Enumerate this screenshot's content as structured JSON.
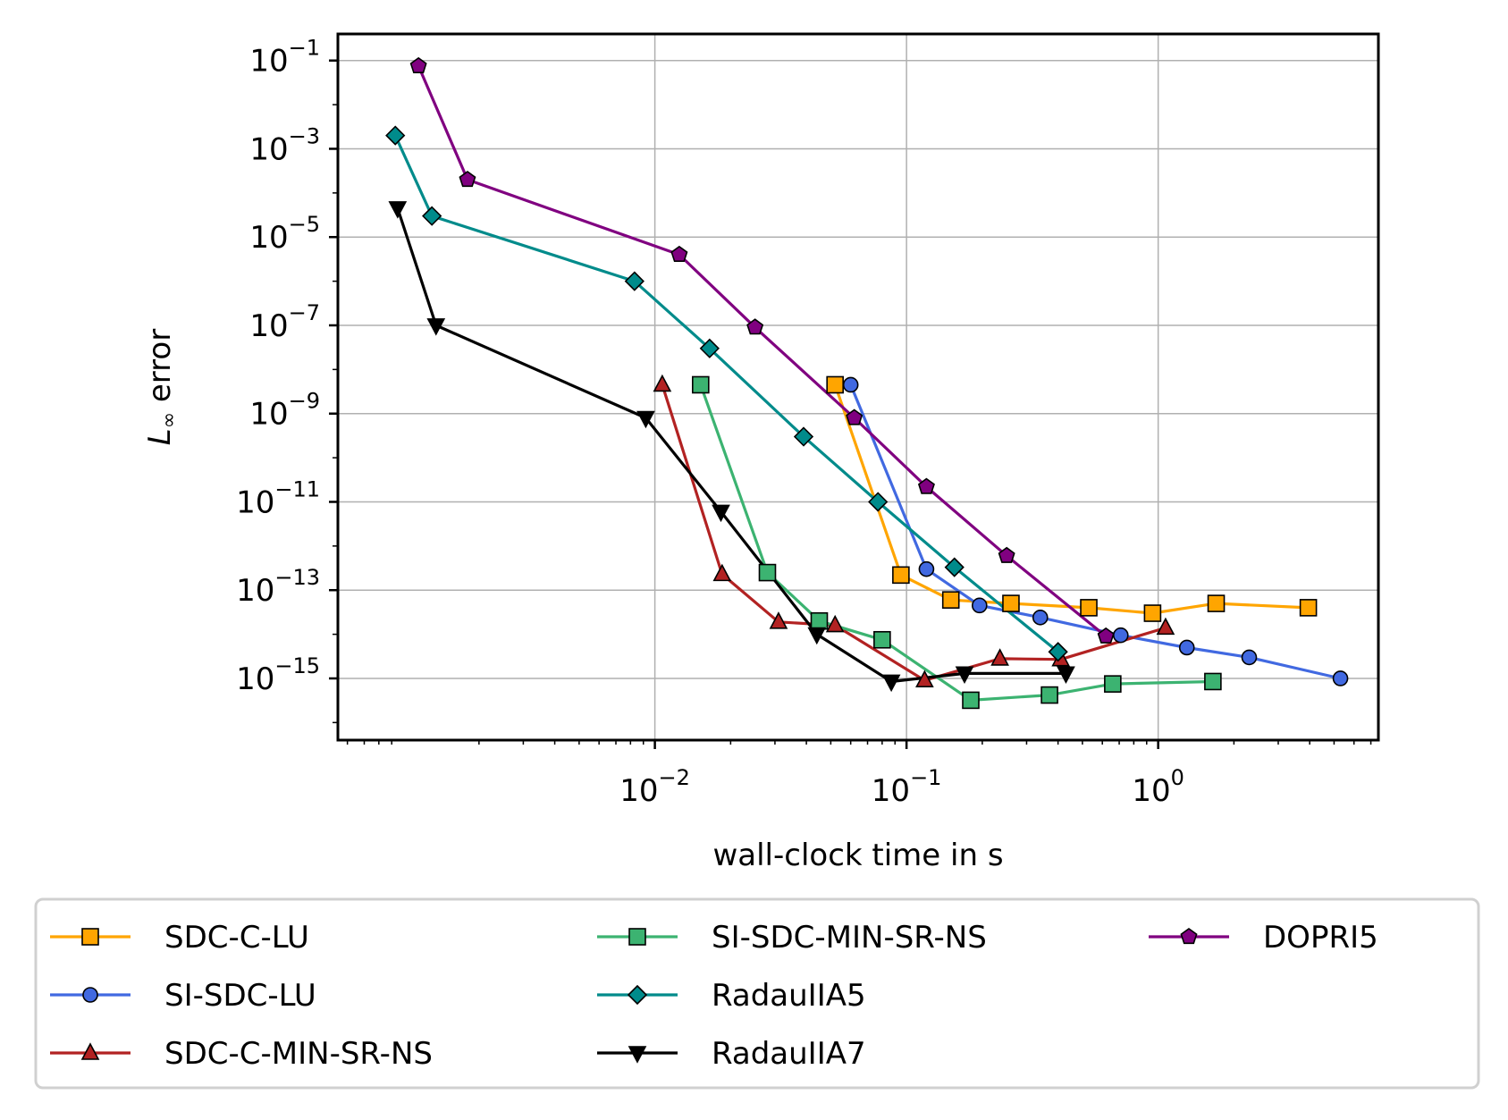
{
  "chart_data": {
    "type": "line",
    "title": "",
    "xlabel": "wall-clock time in s",
    "ylabel_main": "L",
    "ylabel_sub": "∞",
    "ylabel_rest": " error",
    "xscale": "log",
    "yscale": "log",
    "xlim": [
      0.00055,
      7.5
    ],
    "ylim": [
      4e-17,
      0.4
    ],
    "grid": true,
    "x_ticks": [
      {
        "value": 0.01,
        "base": "10",
        "exp": "−2"
      },
      {
        "value": 0.1,
        "base": "10",
        "exp": "−1"
      },
      {
        "value": 1,
        "base": "10",
        "exp": "0"
      }
    ],
    "y_ticks": [
      {
        "value": 0.1,
        "base": "10",
        "exp": "−1"
      },
      {
        "value": 0.001,
        "base": "10",
        "exp": "−3"
      },
      {
        "value": 1e-05,
        "base": "10",
        "exp": "−5"
      },
      {
        "value": 1e-07,
        "base": "10",
        "exp": "−7"
      },
      {
        "value": 1e-09,
        "base": "10",
        "exp": "−9"
      },
      {
        "value": 1e-11,
        "base": "10",
        "exp": "−11"
      },
      {
        "value": 1e-13,
        "base": "10",
        "exp": "−13"
      },
      {
        "value": 1e-15,
        "base": "10",
        "exp": "−15"
      }
    ],
    "legend_position": "below",
    "series": [
      {
        "name": "SDC-C-LU",
        "color": "#ffa500",
        "marker": "square",
        "x": [
          0.052,
          0.095,
          0.15,
          0.26,
          0.53,
          0.95,
          1.7,
          3.95
        ],
        "y": [
          4.5e-09,
          2.2e-13,
          6e-14,
          5e-14,
          4e-14,
          3e-14,
          5e-14,
          4e-14
        ]
      },
      {
        "name": "SI-SDC-LU",
        "color": "#4169e1",
        "marker": "circle",
        "x": [
          0.06,
          0.12,
          0.195,
          0.34,
          0.71,
          1.3,
          2.3,
          5.3
        ],
        "y": [
          4.5e-09,
          3e-13,
          4.5e-14,
          2.4e-14,
          9.5e-15,
          5e-15,
          3e-15,
          1e-15
        ]
      },
      {
        "name": "SDC-C-MIN-SR-NS",
        "color": "#b22222",
        "marker": "triangle",
        "x": [
          0.0107,
          0.0185,
          0.031,
          0.052,
          0.118,
          0.235,
          0.41,
          1.07
        ],
        "y": [
          4.5e-09,
          2.3e-13,
          1.9e-14,
          1.6e-14,
          9e-16,
          2.8e-15,
          2.7e-15,
          1.4e-14
        ]
      },
      {
        "name": "SI-SDC-MIN-SR-NS",
        "color": "#3cb371",
        "marker": "square",
        "x": [
          0.0152,
          0.028,
          0.045,
          0.08,
          0.18,
          0.37,
          0.66,
          1.65
        ],
        "y": [
          4.5e-09,
          2.5e-13,
          2e-14,
          7.5e-15,
          3.2e-16,
          4.2e-16,
          7.5e-16,
          8.5e-16
        ]
      },
      {
        "name": "RadauIIA5",
        "color": "#008b8b",
        "marker": "diamond",
        "x": [
          0.00093,
          0.0013,
          0.0083,
          0.0165,
          0.039,
          0.077,
          0.155,
          0.4
        ],
        "y": [
          0.002,
          3e-05,
          1e-06,
          3e-08,
          3e-10,
          1e-11,
          3.3e-13,
          4e-15
        ]
      },
      {
        "name": "RadauIIA7",
        "color": "#000000",
        "marker": "triangle-down",
        "x": [
          0.00095,
          0.00135,
          0.0092,
          0.0183,
          0.044,
          0.087,
          0.17,
          0.43
        ],
        "y": [
          4.5e-05,
          1e-07,
          8e-10,
          6e-12,
          1e-14,
          8.5e-16,
          1.3e-15,
          1.3e-15
        ]
      },
      {
        "name": "DOPRI5",
        "color": "#800080",
        "marker": "pentagon",
        "x": [
          0.00115,
          0.0018,
          0.0125,
          0.025,
          0.062,
          0.12,
          0.25,
          0.62
        ],
        "y": [
          0.075,
          0.0002,
          4e-06,
          9e-08,
          8e-10,
          2.2e-11,
          6e-13,
          9e-15
        ]
      }
    ]
  }
}
